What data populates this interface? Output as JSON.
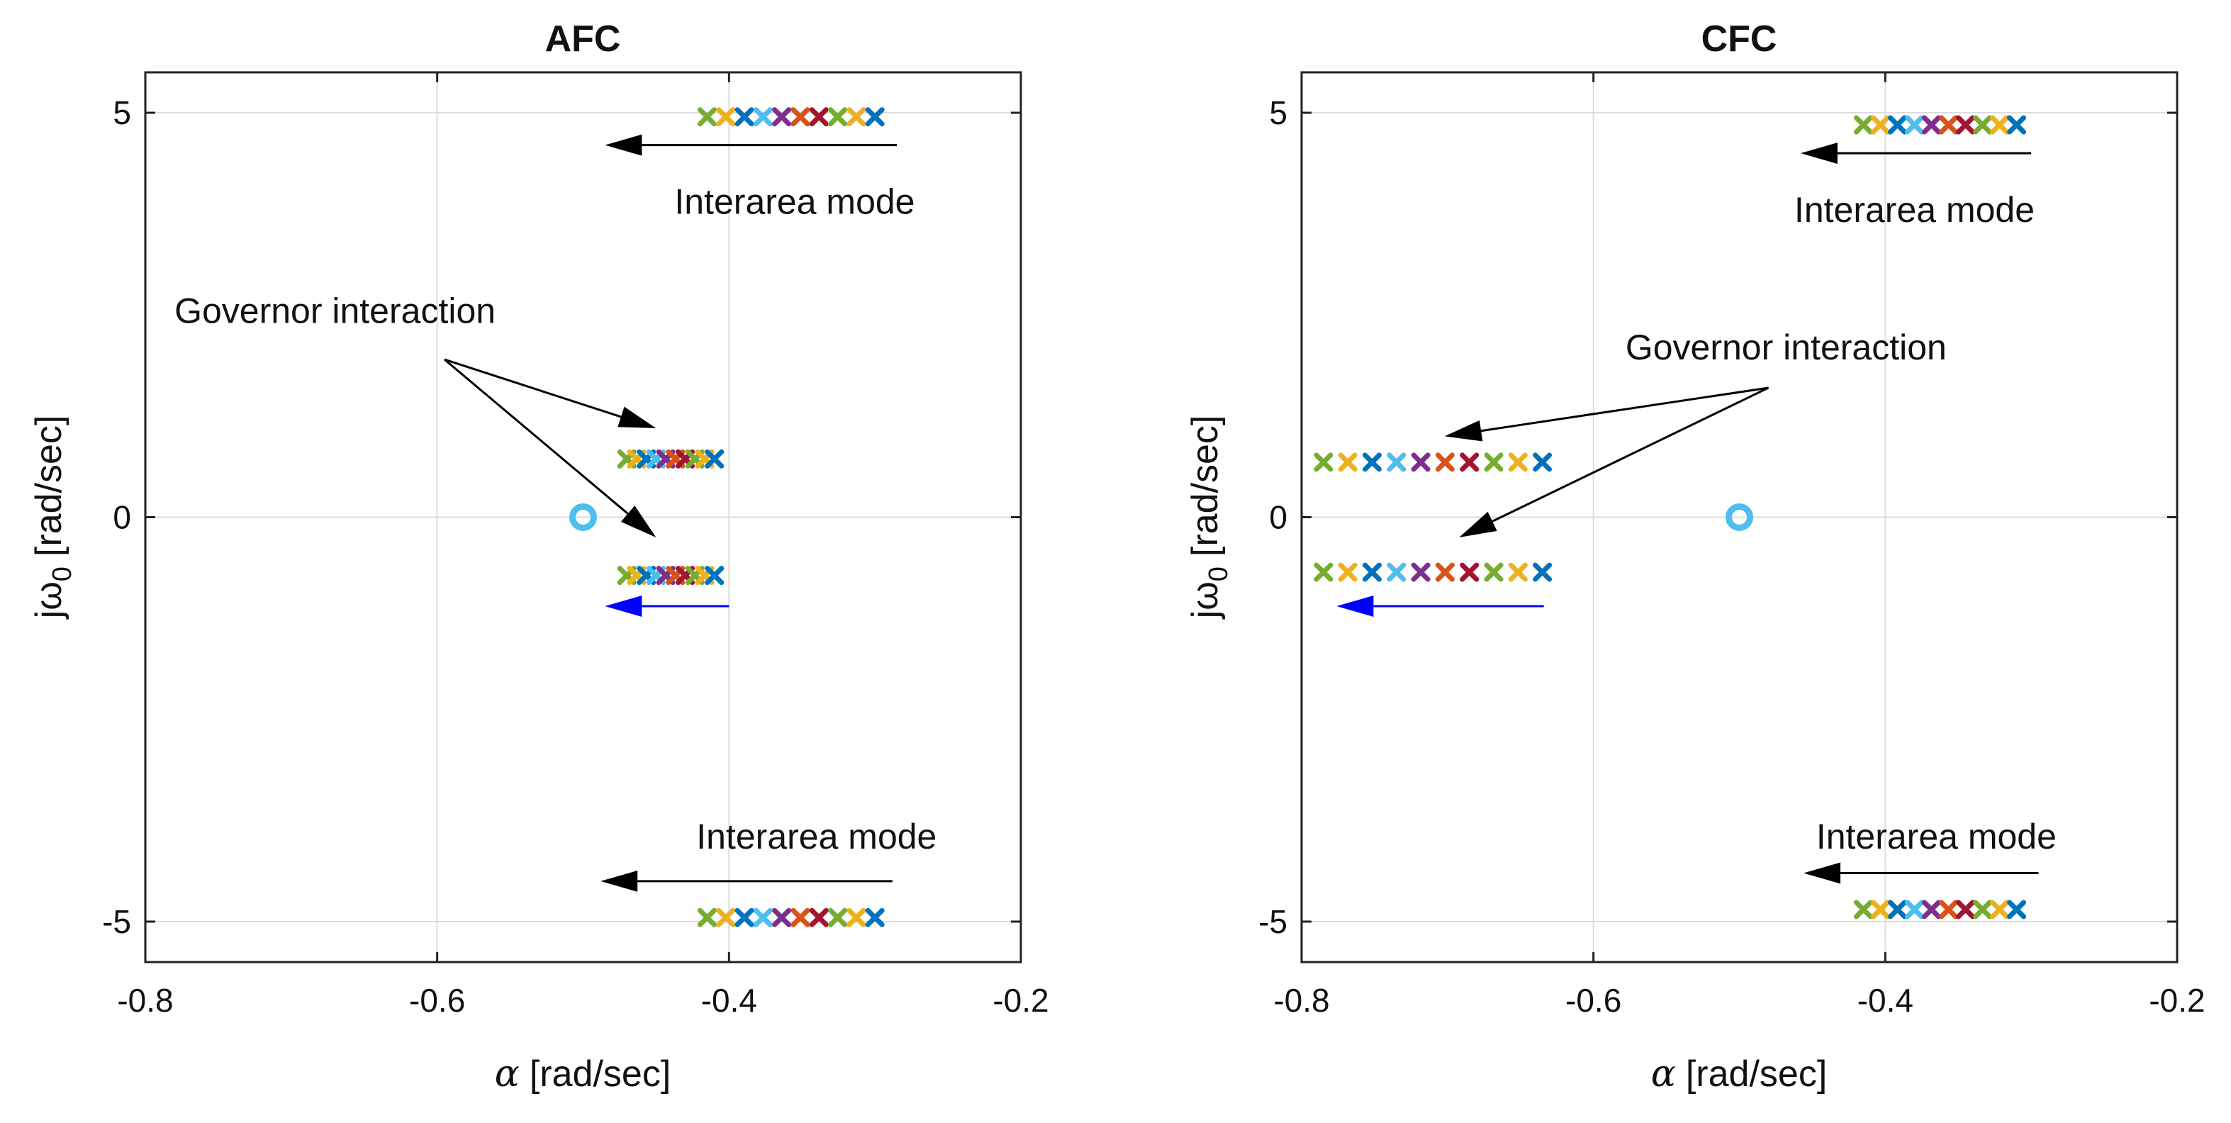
{
  "chart_data": [
    {
      "type": "scatter",
      "title": "AFC",
      "xlabel_symbol": "α",
      "xlabel": "[rad/sec]",
      "ylabel_prefix": "jω",
      "ylabel_sub": "0",
      "ylabel": "[rad/sec]",
      "xlim": [
        -0.8,
        -0.2
      ],
      "ylim": [
        -5.5,
        5.5
      ],
      "xticks": [
        -0.8,
        -0.6,
        -0.4,
        -0.2
      ],
      "xtick_labels": [
        "-0.8",
        "-0.6",
        "-0.4",
        "-0.2"
      ],
      "yticks": [
        -5,
        0,
        5
      ],
      "ytick_labels": [
        "-5",
        "0",
        "5"
      ],
      "grid": true,
      "open_circle": {
        "x": -0.5,
        "y": 0,
        "color": "#4DBEEE"
      },
      "marker_colors": [
        "#77AC30",
        "#EDB120",
        "#0072BD",
        "#4DBEEE",
        "#7E2F8E",
        "#D95319",
        "#A2142F",
        "#77AC30",
        "#EDB120",
        "#0072BD"
      ],
      "mode_series": [
        {
          "name": "Interarea mode (upper)",
          "y": 4.95,
          "x_start": -0.415,
          "x_end": -0.3
        },
        {
          "name": "Governor interaction (upper)",
          "y": 0.72,
          "x_start": -0.47,
          "x_end": -0.41
        },
        {
          "name": "Governor interaction (lower)",
          "y": -0.72,
          "x_start": -0.47,
          "x_end": -0.41
        },
        {
          "name": "Interarea mode (lower)",
          "y": -4.95,
          "x_start": -0.415,
          "x_end": -0.3
        }
      ],
      "arrows": [
        {
          "from": [
            -0.285,
            4.6
          ],
          "to": [
            -0.485,
            4.6
          ],
          "color": "#000000"
        },
        {
          "from": [
            -0.4,
            -1.1
          ],
          "to": [
            -0.485,
            -1.1
          ],
          "color": "#0000FF"
        },
        {
          "from": [
            -0.595,
            1.95
          ],
          "to": [
            -0.45,
            1.1
          ],
          "color": "#000000"
        },
        {
          "from": [
            -0.595,
            1.95
          ],
          "to": [
            -0.45,
            -0.25
          ],
          "color": "#000000"
        },
        {
          "from": [
            -0.288,
            -4.5
          ],
          "to": [
            -0.488,
            -4.5
          ],
          "color": "#000000"
        }
      ],
      "annotations": [
        {
          "text": "Interarea mode",
          "x": -0.355,
          "y": 3.9
        },
        {
          "text": "Governor interaction",
          "x": -0.67,
          "y": 2.55
        },
        {
          "text": "Interarea mode",
          "x": -0.34,
          "y": -3.95
        }
      ]
    },
    {
      "type": "scatter",
      "title": "CFC",
      "xlabel_symbol": "α",
      "xlabel": "[rad/sec]",
      "ylabel_prefix": "jω",
      "ylabel_sub": "0",
      "ylabel": "[rad/sec]",
      "xlim": [
        -0.8,
        -0.2
      ],
      "ylim": [
        -5.5,
        5.5
      ],
      "xticks": [
        -0.8,
        -0.6,
        -0.4,
        -0.2
      ],
      "xtick_labels": [
        "-0.8",
        "-0.6",
        "-0.4",
        "-0.2"
      ],
      "yticks": [
        -5,
        0,
        5
      ],
      "ytick_labels": [
        "-5",
        "0",
        "5"
      ],
      "grid": true,
      "open_circle": {
        "x": -0.5,
        "y": 0,
        "color": "#4DBEEE"
      },
      "marker_colors": [
        "#77AC30",
        "#EDB120",
        "#0072BD",
        "#4DBEEE",
        "#7E2F8E",
        "#D95319",
        "#A2142F",
        "#77AC30",
        "#EDB120",
        "#0072BD"
      ],
      "mode_series": [
        {
          "name": "Interarea mode (upper)",
          "y": 4.85,
          "x_start": -0.415,
          "x_end": -0.31
        },
        {
          "name": "Governor interaction (upper)",
          "y": 0.68,
          "x_start": -0.785,
          "x_end": -0.635
        },
        {
          "name": "Governor interaction (lower)",
          "y": -0.68,
          "x_start": -0.785,
          "x_end": -0.635
        },
        {
          "name": "Interarea mode (lower)",
          "y": -4.85,
          "x_start": -0.415,
          "x_end": -0.31
        }
      ],
      "arrows": [
        {
          "from": [
            -0.3,
            4.5
          ],
          "to": [
            -0.458,
            4.5
          ],
          "color": "#000000"
        },
        {
          "from": [
            -0.634,
            -1.1
          ],
          "to": [
            -0.776,
            -1.1
          ],
          "color": "#0000FF"
        },
        {
          "from": [
            -0.48,
            1.6
          ],
          "to": [
            -0.702,
            1.0
          ],
          "color": "#000000"
        },
        {
          "from": [
            -0.48,
            1.6
          ],
          "to": [
            -0.692,
            -0.25
          ],
          "color": "#000000"
        },
        {
          "from": [
            -0.295,
            -4.4
          ],
          "to": [
            -0.456,
            -4.4
          ],
          "color": "#000000"
        }
      ],
      "annotations": [
        {
          "text": "Interarea mode",
          "x": -0.38,
          "y": 3.8
        },
        {
          "text": "Governor interaction",
          "x": -0.468,
          "y": 2.1
        },
        {
          "text": "Interarea mode",
          "x": -0.365,
          "y": -3.95
        }
      ]
    }
  ]
}
